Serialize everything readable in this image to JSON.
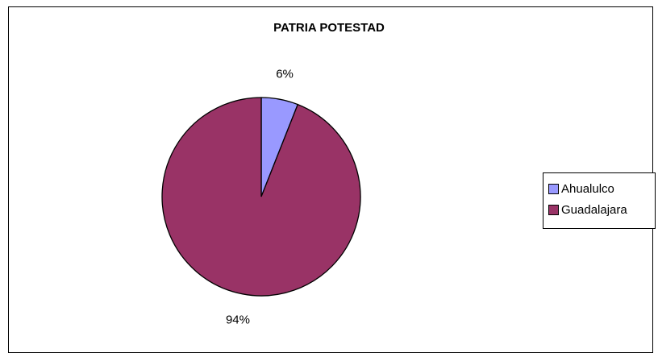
{
  "chart_data": {
    "type": "pie",
    "title": "PATRIA POTESTAD",
    "categories": [
      "Ahualulco",
      "Guadalajara"
    ],
    "values": [
      6,
      94
    ],
    "labels": [
      "6%",
      "94%"
    ],
    "colors": [
      "#9999ff",
      "#993366"
    ],
    "legend_position": "right"
  }
}
